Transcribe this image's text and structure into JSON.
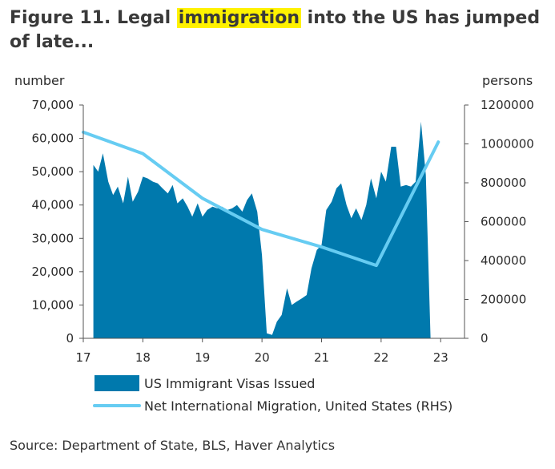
{
  "title": {
    "prefix": "Figure 11. Legal ",
    "highlight": "immigration",
    "suffix": " into the US has jumped of late..."
  },
  "source": "Source: Department of State, BLS, Haver Analytics",
  "chart_data": {
    "type": "area",
    "left_axis_label": "number",
    "right_axis_label": "persons",
    "ylim_left": [
      0,
      70000
    ],
    "ylim_right": [
      0,
      1200000
    ],
    "xlim": [
      17,
      23.4
    ],
    "left_ticks": [
      "70,000",
      "60,000",
      "50,000",
      "40,000",
      "30,000",
      "20,000",
      "10,000",
      "0"
    ],
    "right_ticks": [
      "1200000",
      "1000000",
      "800000",
      "600000",
      "400000",
      "200000",
      "0"
    ],
    "x_ticks": [
      "17",
      "18",
      "19",
      "20",
      "21",
      "22",
      "23"
    ],
    "grid": false,
    "legend_position": "bottom",
    "series": [
      {
        "name": "US Immigrant Visas Issued",
        "kind": "area",
        "axis": "left",
        "color": "#0079ad",
        "x": [
          17.17,
          17.25,
          17.33,
          17.42,
          17.5,
          17.58,
          17.67,
          17.75,
          17.83,
          17.92,
          18.0,
          18.08,
          18.17,
          18.25,
          18.33,
          18.42,
          18.5,
          18.58,
          18.67,
          18.75,
          18.83,
          18.92,
          19.0,
          19.08,
          19.17,
          19.25,
          19.33,
          19.42,
          19.5,
          19.58,
          19.67,
          19.75,
          19.83,
          19.92,
          20.0,
          20.08,
          20.17,
          20.25,
          20.33,
          20.42,
          20.5,
          20.58,
          20.67,
          20.75,
          20.83,
          20.92,
          21.0,
          21.08,
          21.17,
          21.25,
          21.33,
          21.42,
          21.5,
          21.58,
          21.67,
          21.75,
          21.83,
          21.92,
          22.0,
          22.08,
          22.17,
          22.25,
          22.33,
          22.42,
          22.5,
          22.58,
          22.67,
          22.75,
          22.83,
          22.92,
          23.0,
          23.08,
          23.17,
          23.25,
          23.33
        ],
        "values": [
          52000,
          50000,
          55500,
          47000,
          43000,
          45500,
          40500,
          48500,
          41000,
          44000,
          48500,
          48000,
          47000,
          46500,
          45000,
          43500,
          46000,
          40500,
          42000,
          39500,
          36500,
          40500,
          36500,
          38500,
          39500,
          39000,
          39500,
          38500,
          39000,
          40000,
          38000,
          41500,
          43500,
          38000,
          25000,
          1500,
          1000,
          5000,
          7000,
          15000,
          10000,
          11000,
          12000,
          13000,
          21000,
          26500,
          28000,
          38500,
          41000,
          45000,
          46500,
          40000,
          36000,
          39000,
          35500,
          40000,
          48000,
          42000,
          50000,
          47000,
          57500,
          57500,
          45500,
          46000,
          45500,
          47000,
          65000,
          49000,
          0,
          0,
          0,
          0,
          0,
          0,
          0
        ],
        "x_trim": 72
      },
      {
        "name": "Net International Migration, United States (RHS)",
        "kind": "line",
        "axis": "right",
        "color": "#66ccf2",
        "x": [
          17.0,
          18.0,
          19.0,
          20.0,
          21.0,
          21.92,
          22.96
        ],
        "values": [
          1060000,
          950000,
          720000,
          560000,
          470000,
          375000,
          1010000
        ]
      }
    ]
  }
}
